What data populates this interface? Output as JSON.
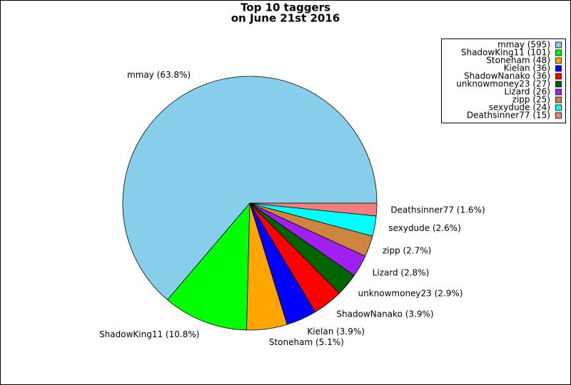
{
  "chart_data": {
    "type": "pie",
    "title": "Top 10 taggers",
    "subtitle": "on June 21st 2016",
    "categories": [
      "mmay (595)",
      "ShadowKing11 (101)",
      "Stoneham (48)",
      "Kielan (36)",
      "ShadowNanako (36)",
      "unknowmoney23 (27)",
      "Lizard (26)",
      "zipp (25)",
      "sexydude (24)",
      "Deathsinner77 (15)"
    ],
    "values": [
      595,
      101,
      48,
      36,
      36,
      27,
      26,
      25,
      24,
      15
    ],
    "slice_labels": [
      "mmay (63.8%)",
      "ShadowKing11 (10.8%)",
      "Stoneham (5.1%)",
      "Kielan (3.9%)",
      "ShadowNanako (3.9%)",
      "unknowmoney23 (2.9%)",
      "Lizard (2.8%)",
      "zipp (2.7%)",
      "sexydude (2.6%)",
      "Deathsinner77 (1.6%)"
    ],
    "colors": [
      "#87ceeb",
      "#00ff00",
      "#ffa500",
      "#0000ff",
      "#ff0000",
      "#006400",
      "#a020f0",
      "#cd853f",
      "#00ffff",
      "#f08080"
    ],
    "legend": "top-right"
  }
}
